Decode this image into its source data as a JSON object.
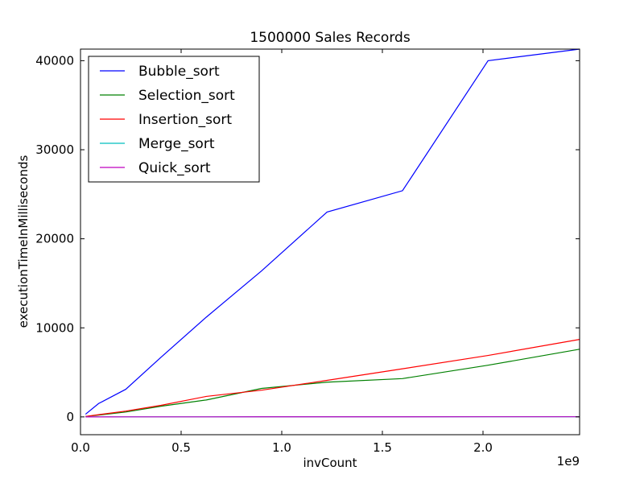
{
  "chart_data": {
    "type": "line",
    "title": "1500000 Sales Records",
    "xlabel": "invCount",
    "ylabel": "executionTimeInMilliseconds",
    "x_offset_label": "1e9",
    "xlim": [
      0,
      2.48
    ],
    "ylim": [
      -2000,
      41300
    ],
    "x_ticks": [
      0.0,
      0.5,
      1.0,
      1.5,
      2.0
    ],
    "x_tick_labels": [
      "0.0",
      "0.5",
      "1.0",
      "1.5",
      "2.0"
    ],
    "y_ticks": [
      0,
      10000,
      20000,
      30000,
      40000
    ],
    "y_tick_labels": [
      "0",
      "10000",
      "20000",
      "30000",
      "40000"
    ],
    "grid": false,
    "legend_position": "top-left",
    "series": [
      {
        "name": "Bubble_sort",
        "color": "#0000ff",
        "x": [
          0.025,
          0.09,
          0.225,
          0.4,
          0.625,
          0.9,
          1.225,
          1.6,
          2.025,
          2.48
        ],
        "y": [
          300,
          1500,
          3100,
          6700,
          11200,
          16400,
          23000,
          25400,
          40000,
          41300
        ]
      },
      {
        "name": "Selection_sort",
        "color": "#008000",
        "x": [
          0.025,
          0.09,
          0.225,
          0.4,
          0.625,
          0.9,
          1.225,
          1.6,
          2.025,
          2.48
        ],
        "y": [
          50,
          200,
          550,
          1200,
          1900,
          3200,
          3900,
          4300,
          5800,
          7600
        ]
      },
      {
        "name": "Insertion_sort",
        "color": "#ff0000",
        "x": [
          0.025,
          0.09,
          0.225,
          0.4,
          0.625,
          0.9,
          1.225,
          1.6,
          2.025,
          2.48
        ],
        "y": [
          50,
          250,
          650,
          1300,
          2300,
          3000,
          4100,
          5400,
          6900,
          8700
        ]
      },
      {
        "name": "Merge_sort",
        "color": "#00bfbf",
        "x": [
          0.025,
          0.09,
          0.225,
          0.4,
          0.625,
          0.9,
          1.225,
          1.6,
          2.025,
          2.48
        ],
        "y": [
          0,
          2,
          4,
          6,
          8,
          10,
          12,
          14,
          16,
          18
        ]
      },
      {
        "name": "Quick_sort",
        "color": "#bf00bf",
        "x": [
          0.025,
          0.09,
          0.225,
          0.4,
          0.625,
          0.9,
          1.225,
          1.6,
          2.025,
          2.48
        ],
        "y": [
          0,
          2,
          4,
          6,
          8,
          10,
          12,
          14,
          16,
          18
        ]
      }
    ]
  }
}
